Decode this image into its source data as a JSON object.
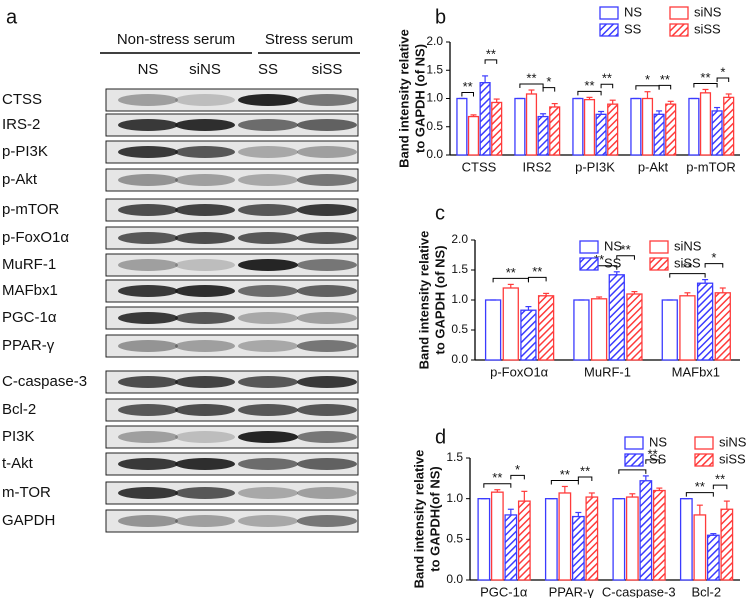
{
  "blot": {
    "panel_label": "a",
    "groups": [
      "Non-stress serum",
      "Stress serum"
    ],
    "lanes": [
      "NS",
      "siNS",
      "SS",
      "siSS"
    ],
    "proteins": [
      "CTSS",
      "IRS-2",
      "p-PI3K",
      "p-Akt",
      "p-mTOR",
      "p-FoxO1α",
      "MuRF-1",
      "MAFbx1",
      "PGC-1α",
      "PPAR-γ",
      "C-caspase-3",
      "Bcl-2",
      "PI3K",
      "t-Akt",
      "m-TOR",
      "GAPDH"
    ]
  },
  "chart_data": [
    {
      "type": "bar",
      "panel_label": "b",
      "ylabel": [
        "Band intensity relative",
        "to GAPDH (of NS)"
      ],
      "categories": [
        "CTSS",
        "IRS2",
        "p-PI3K",
        "p-Akt",
        "p-mTOR"
      ],
      "ylim": [
        0,
        2
      ],
      "yticks": [
        {
          "value": 0,
          "label": "0.0"
        },
        {
          "value": 0.5,
          "label": "0.5"
        },
        {
          "value": 1,
          "label": "1.0"
        },
        {
          "value": 1.5,
          "label": "1.5"
        },
        {
          "value": 2,
          "label": "2.0"
        }
      ],
      "series": [
        {
          "name": "NS",
          "color": "#3b3bff",
          "hatch": false,
          "values": [
            1.0,
            1.0,
            1.0,
            1.0,
            1.0
          ],
          "errors": [
            0.0,
            0.0,
            0.0,
            0.0,
            0.0
          ]
        },
        {
          "name": "siNS",
          "color": "#ff3b3b",
          "hatch": false,
          "values": [
            0.68,
            1.08,
            0.98,
            1.0,
            1.1
          ],
          "errors": [
            0.03,
            0.07,
            0.04,
            0.12,
            0.06
          ]
        },
        {
          "name": "SS",
          "color": "#3b3bff",
          "hatch": true,
          "values": [
            1.28,
            0.68,
            0.72,
            0.72,
            0.78
          ],
          "errors": [
            0.12,
            0.05,
            0.05,
            0.06,
            0.06
          ]
        },
        {
          "name": "siSS",
          "color": "#ff3b3b",
          "hatch": true,
          "values": [
            0.93,
            0.85,
            0.9,
            0.9,
            1.02
          ],
          "errors": [
            0.06,
            0.06,
            0.07,
            0.05,
            0.06
          ]
        }
      ],
      "annotations": [
        {
          "category": 0,
          "pair": [
            "NS",
            "siNS"
          ],
          "text": "**"
        },
        {
          "category": 0,
          "pair": [
            "SS",
            "siSS"
          ],
          "text": "**"
        },
        {
          "category": 1,
          "pair": [
            "NS",
            "SS"
          ],
          "text": "**"
        },
        {
          "category": 1,
          "pair": [
            "SS",
            "siSS"
          ],
          "text": "*"
        },
        {
          "category": 2,
          "pair": [
            "NS",
            "SS"
          ],
          "text": "**"
        },
        {
          "category": 2,
          "pair": [
            "SS",
            "siSS"
          ],
          "text": "**"
        },
        {
          "category": 3,
          "pair": [
            "NS",
            "SS"
          ],
          "text": "*"
        },
        {
          "category": 3,
          "pair": [
            "SS",
            "siSS"
          ],
          "text": "**"
        },
        {
          "category": 4,
          "pair": [
            "NS",
            "SS"
          ],
          "text": "**"
        },
        {
          "category": 4,
          "pair": [
            "SS",
            "siSS"
          ],
          "text": "*"
        }
      ]
    },
    {
      "type": "bar",
      "panel_label": "c",
      "ylabel": [
        "Band intensity relative",
        "to GAPDH (of NS)"
      ],
      "categories": [
        "p-FoxO1α",
        "MuRF-1",
        "MAFbx1"
      ],
      "ylim": [
        0,
        2
      ],
      "yticks": [
        {
          "value": 0,
          "label": "0.0"
        },
        {
          "value": 0.5,
          "label": "0.5"
        },
        {
          "value": 1,
          "label": "1.0"
        },
        {
          "value": 1.5,
          "label": "1.5"
        },
        {
          "value": 2,
          "label": "2.0"
        }
      ],
      "series": [
        {
          "name": "NS",
          "color": "#3b3bff",
          "hatch": false,
          "values": [
            1.0,
            1.0,
            1.0
          ],
          "errors": [
            0.0,
            0.0,
            0.0
          ]
        },
        {
          "name": "siNS",
          "color": "#ff3b3b",
          "hatch": false,
          "values": [
            1.2,
            1.02,
            1.07
          ],
          "errors": [
            0.06,
            0.03,
            0.05
          ]
        },
        {
          "name": "SS",
          "color": "#3b3bff",
          "hatch": true,
          "values": [
            0.83,
            1.42,
            1.28
          ],
          "errors": [
            0.06,
            0.05,
            0.06
          ]
        },
        {
          "name": "siSS",
          "color": "#ff3b3b",
          "hatch": true,
          "values": [
            1.07,
            1.1,
            1.12
          ],
          "errors": [
            0.04,
            0.04,
            0.08
          ]
        }
      ],
      "annotations": [
        {
          "category": 0,
          "pair": [
            "NS",
            "SS"
          ],
          "text": "**"
        },
        {
          "category": 0,
          "pair": [
            "SS",
            "siSS"
          ],
          "text": "**"
        },
        {
          "category": 1,
          "pair": [
            "NS",
            "SS"
          ],
          "text": "**"
        },
        {
          "category": 1,
          "pair": [
            "SS",
            "siSS"
          ],
          "text": "**"
        },
        {
          "category": 2,
          "pair": [
            "NS",
            "SS"
          ],
          "text": "**"
        },
        {
          "category": 2,
          "pair": [
            "SS",
            "siSS"
          ],
          "text": "*"
        }
      ]
    },
    {
      "type": "bar",
      "panel_label": "d",
      "ylabel": [
        "Band intensity relative",
        "to GAPDH(of NS)"
      ],
      "categories": [
        "PGC-1α",
        "PPAR-γ",
        "C-caspase-3",
        "Bcl-2"
      ],
      "ylim": [
        0,
        1.5
      ],
      "yticks": [
        {
          "value": 0,
          "label": "0.0"
        },
        {
          "value": 0.5,
          "label": "0.5"
        },
        {
          "value": 1,
          "label": "1.0"
        },
        {
          "value": 1.5,
          "label": "1.5"
        }
      ],
      "series": [
        {
          "name": "NS",
          "color": "#3b3bff",
          "hatch": false,
          "values": [
            1.0,
            1.0,
            1.0,
            1.0
          ],
          "errors": [
            0.0,
            0.0,
            0.0,
            0.0
          ]
        },
        {
          "name": "siNS",
          "color": "#ff3b3b",
          "hatch": false,
          "values": [
            1.08,
            1.07,
            1.02,
            0.8
          ],
          "errors": [
            0.03,
            0.08,
            0.04,
            0.12
          ]
        },
        {
          "name": "SS",
          "color": "#3b3bff",
          "hatch": true,
          "values": [
            0.8,
            0.78,
            1.22,
            0.55
          ],
          "errors": [
            0.07,
            0.05,
            0.06,
            0.02
          ]
        },
        {
          "name": "siSS",
          "color": "#ff3b3b",
          "hatch": true,
          "values": [
            0.97,
            1.02,
            1.1,
            0.87
          ],
          "errors": [
            0.12,
            0.05,
            0.03,
            0.1
          ]
        }
      ],
      "annotations": [
        {
          "category": 0,
          "pair": [
            "NS",
            "SS"
          ],
          "text": "**"
        },
        {
          "category": 0,
          "pair": [
            "SS",
            "siSS"
          ],
          "text": "*"
        },
        {
          "category": 1,
          "pair": [
            "NS",
            "SS"
          ],
          "text": "**"
        },
        {
          "category": 1,
          "pair": [
            "SS",
            "siSS"
          ],
          "text": "**"
        },
        {
          "category": 2,
          "pair": [
            "NS",
            "SS"
          ],
          "text": "**"
        },
        {
          "category": 2,
          "pair": [
            "SS",
            "siSS"
          ],
          "text": "**"
        },
        {
          "category": 3,
          "pair": [
            "NS",
            "SS"
          ],
          "text": "**"
        },
        {
          "category": 3,
          "pair": [
            "SS",
            "siSS"
          ],
          "text": "**"
        }
      ]
    }
  ]
}
